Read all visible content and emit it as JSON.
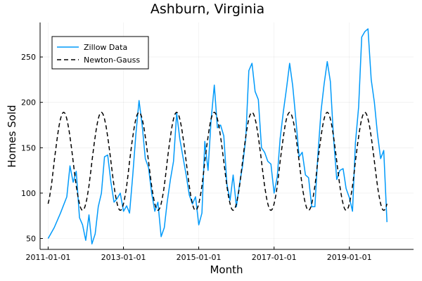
{
  "chart_data": {
    "type": "line",
    "title": "Ashburn, Virginia",
    "xlabel": "Month",
    "ylabel": "Homes Sold",
    "xlim": [
      "2010-10-15",
      "2020-09-15"
    ],
    "ylim": [
      38,
      288
    ],
    "x_ticks": [
      "2011-01-01",
      "2013-01-01",
      "2015-01-01",
      "2017-01-01",
      "2019-01-01"
    ],
    "y_ticks": [
      50,
      100,
      150,
      200,
      250
    ],
    "grid": true,
    "legend": "top-left",
    "series": [
      {
        "name": "Zillow Data",
        "color": "#009AFA",
        "style": "solid",
        "points": [
          [
            "2011-01-01",
            50
          ],
          [
            "2011-03-01",
            62
          ],
          [
            "2011-05-01",
            78
          ],
          [
            "2011-07-01",
            96
          ],
          [
            "2011-08-01",
            130
          ],
          [
            "2011-09-01",
            112
          ],
          [
            "2011-10-01",
            124
          ],
          [
            "2011-11-01",
            73
          ],
          [
            "2011-12-01",
            65
          ],
          [
            "2012-01-01",
            48
          ],
          [
            "2012-02-01",
            76
          ],
          [
            "2012-03-01",
            44
          ],
          [
            "2012-04-01",
            55
          ],
          [
            "2012-05-01",
            85
          ],
          [
            "2012-06-01",
            100
          ],
          [
            "2012-07-01",
            140
          ],
          [
            "2012-08-01",
            142
          ],
          [
            "2012-09-01",
            112
          ],
          [
            "2012-10-01",
            90
          ],
          [
            "2012-11-01",
            94
          ],
          [
            "2012-12-01",
            100
          ],
          [
            "2013-01-01",
            80
          ],
          [
            "2013-02-01",
            86
          ],
          [
            "2013-03-01",
            78
          ],
          [
            "2013-04-01",
            120
          ],
          [
            "2013-05-01",
            165
          ],
          [
            "2013-06-01",
            202
          ],
          [
            "2013-07-01",
            175
          ],
          [
            "2013-08-01",
            138
          ],
          [
            "2013-09-01",
            128
          ],
          [
            "2013-10-01",
            100
          ],
          [
            "2013-11-01",
            80
          ],
          [
            "2013-12-01",
            90
          ],
          [
            "2014-01-01",
            52
          ],
          [
            "2014-02-01",
            62
          ],
          [
            "2014-03-01",
            90
          ],
          [
            "2014-04-01",
            115
          ],
          [
            "2014-05-01",
            135
          ],
          [
            "2014-06-01",
            188
          ],
          [
            "2014-07-01",
            160
          ],
          [
            "2014-08-01",
            140
          ],
          [
            "2014-09-01",
            120
          ],
          [
            "2014-10-01",
            98
          ],
          [
            "2014-11-01",
            88
          ],
          [
            "2014-12-01",
            96
          ],
          [
            "2015-01-01",
            65
          ],
          [
            "2015-02-01",
            78
          ],
          [
            "2015-03-01",
            157
          ],
          [
            "2015-04-01",
            125
          ],
          [
            "2015-05-01",
            180
          ],
          [
            "2015-06-01",
            219
          ],
          [
            "2015-07-01",
            172
          ],
          [
            "2015-08-01",
            175
          ],
          [
            "2015-09-01",
            163
          ],
          [
            "2015-10-01",
            110
          ],
          [
            "2015-11-01",
            92
          ],
          [
            "2015-12-01",
            120
          ],
          [
            "2016-01-01",
            85
          ],
          [
            "2016-02-01",
            110
          ],
          [
            "2016-03-01",
            130
          ],
          [
            "2016-04-01",
            160
          ],
          [
            "2016-05-01",
            235
          ],
          [
            "2016-06-01",
            243
          ],
          [
            "2016-07-01",
            212
          ],
          [
            "2016-08-01",
            203
          ],
          [
            "2016-09-01",
            150
          ],
          [
            "2016-10-01",
            145
          ],
          [
            "2016-11-01",
            135
          ],
          [
            "2016-12-01",
            132
          ],
          [
            "2017-01-01",
            100
          ],
          [
            "2017-02-01",
            118
          ],
          [
            "2017-03-01",
            160
          ],
          [
            "2017-04-01",
            190
          ],
          [
            "2017-05-01",
            215
          ],
          [
            "2017-06-01",
            243
          ],
          [
            "2017-07-01",
            218
          ],
          [
            "2017-08-01",
            180
          ],
          [
            "2017-09-01",
            140
          ],
          [
            "2017-10-01",
            145
          ],
          [
            "2017-11-01",
            120
          ],
          [
            "2017-12-01",
            117
          ],
          [
            "2018-01-01",
            85
          ],
          [
            "2018-02-01",
            85
          ],
          [
            "2018-03-01",
            140
          ],
          [
            "2018-04-01",
            190
          ],
          [
            "2018-05-01",
            220
          ],
          [
            "2018-06-01",
            245
          ],
          [
            "2018-07-01",
            223
          ],
          [
            "2018-08-01",
            160
          ],
          [
            "2018-09-01",
            115
          ],
          [
            "2018-10-01",
            125
          ],
          [
            "2018-11-01",
            127
          ],
          [
            "2018-12-01",
            105
          ],
          [
            "2019-01-01",
            95
          ],
          [
            "2019-02-01",
            80
          ],
          [
            "2019-03-01",
            155
          ],
          [
            "2019-04-01",
            195
          ],
          [
            "2019-05-01",
            272
          ],
          [
            "2019-06-01",
            278
          ],
          [
            "2019-07-01",
            281
          ],
          [
            "2019-08-01",
            225
          ],
          [
            "2019-09-01",
            200
          ],
          [
            "2019-10-01",
            165
          ],
          [
            "2019-11-01",
            138
          ],
          [
            "2019-12-01",
            147
          ],
          [
            "2020-01-01",
            68
          ]
        ]
      },
      {
        "name": "Newton-Gauss",
        "color": "#000000",
        "style": "dashed",
        "model": {
          "type": "sinusoid",
          "mean": 135,
          "amplitude": 54,
          "period_months": 12,
          "peak_month_offset": 5,
          "start": "2011-01-01",
          "end": "2020-01-01"
        }
      }
    ]
  }
}
